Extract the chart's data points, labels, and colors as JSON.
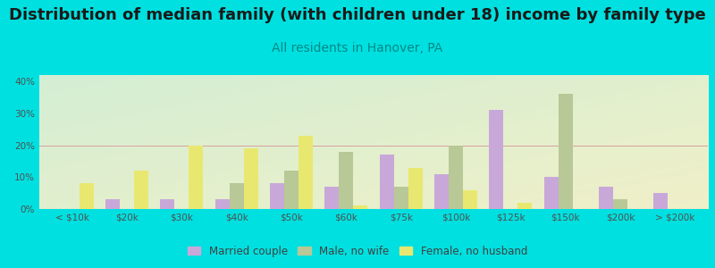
{
  "categories": [
    "< $10k",
    "$20k",
    "$30k",
    "$40k",
    "$50k",
    "$60k",
    "$75k",
    "$100k",
    "$125k",
    "$150k",
    "$200k",
    "> $200k"
  ],
  "married_couple": [
    0,
    3,
    3,
    3,
    8,
    7,
    17,
    11,
    31,
    10,
    7,
    5
  ],
  "male_no_wife": [
    0,
    0,
    0,
    8,
    12,
    18,
    7,
    20,
    0,
    36,
    3,
    0
  ],
  "female_no_husband": [
    8,
    12,
    20,
    19,
    23,
    1,
    13,
    6,
    2,
    0,
    0,
    0
  ],
  "title": "Distribution of median family (with children under 18) income by family type",
  "subtitle": "All residents in Hanover, PA",
  "ylim": [
    0,
    42
  ],
  "yticks": [
    0,
    10,
    20,
    30,
    40
  ],
  "ytick_labels": [
    "0%",
    "10%",
    "20%",
    "30%",
    "40%"
  ],
  "color_married": "#c8a8d8",
  "color_male": "#b8c896",
  "color_female": "#e8e870",
  "bg_outer": "#00e0e0",
  "legend_labels": [
    "Married couple",
    "Male, no wife",
    "Female, no husband"
  ],
  "bar_width": 0.26,
  "grid_color": "#d8a0a0",
  "title_fontsize": 13,
  "subtitle_fontsize": 10,
  "tick_fontsize": 7.5
}
